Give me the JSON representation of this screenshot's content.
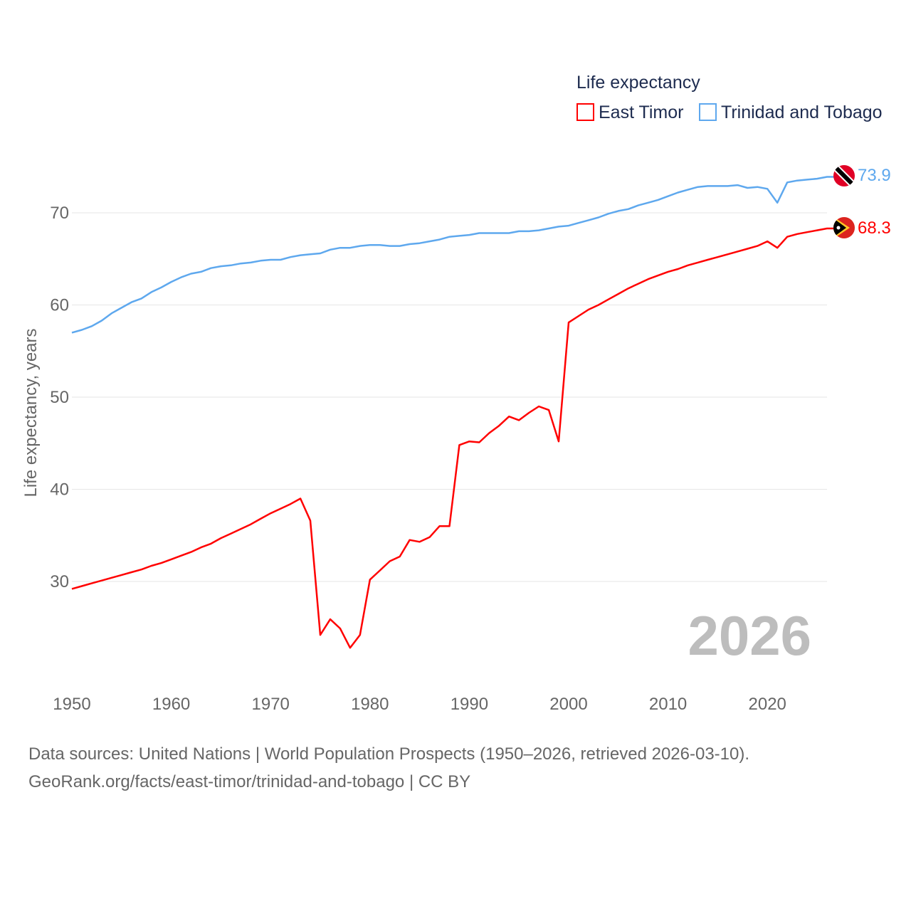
{
  "chart_data": {
    "type": "line",
    "title": "Life expectancy",
    "ylabel": "Life expectancy, years",
    "xlabel": "",
    "xlim": [
      1950,
      2026
    ],
    "ylim": [
      20,
      78
    ],
    "x_ticks": [
      1950,
      1960,
      1970,
      1980,
      1990,
      2000,
      2010,
      2020
    ],
    "y_ticks": [
      30,
      40,
      50,
      60,
      70
    ],
    "grid": true,
    "legend_position": "top-right",
    "year_label": "2026",
    "x": [
      1950,
      1951,
      1952,
      1953,
      1954,
      1955,
      1956,
      1957,
      1958,
      1959,
      1960,
      1961,
      1962,
      1963,
      1964,
      1965,
      1966,
      1967,
      1968,
      1969,
      1970,
      1971,
      1972,
      1973,
      1974,
      1975,
      1976,
      1977,
      1978,
      1979,
      1980,
      1981,
      1982,
      1983,
      1984,
      1985,
      1986,
      1987,
      1988,
      1989,
      1990,
      1991,
      1992,
      1993,
      1994,
      1995,
      1996,
      1997,
      1998,
      1999,
      2000,
      2001,
      2002,
      2003,
      2004,
      2005,
      2006,
      2007,
      2008,
      2009,
      2010,
      2011,
      2012,
      2013,
      2014,
      2015,
      2016,
      2017,
      2018,
      2019,
      2020,
      2021,
      2022,
      2023,
      2024,
      2025,
      2026
    ],
    "series": [
      {
        "name": "East Timor",
        "color": "#ff0000",
        "end_label": "68.3",
        "values": [
          29.2,
          29.5,
          29.8,
          30.1,
          30.4,
          30.7,
          31.0,
          31.3,
          31.7,
          32.0,
          32.4,
          32.8,
          33.2,
          33.7,
          34.1,
          34.7,
          35.2,
          35.7,
          36.2,
          36.8,
          37.4,
          37.9,
          38.4,
          39.0,
          36.6,
          24.2,
          25.9,
          24.9,
          22.8,
          24.2,
          30.2,
          31.2,
          32.2,
          32.7,
          34.5,
          34.3,
          34.8,
          36.0,
          36.0,
          44.8,
          45.2,
          45.1,
          46.1,
          46.9,
          47.9,
          47.5,
          48.3,
          49.0,
          48.6,
          45.2,
          58.1,
          58.8,
          59.5,
          60.0,
          60.6,
          61.2,
          61.8,
          62.3,
          62.8,
          63.2,
          63.6,
          63.9,
          64.3,
          64.6,
          64.9,
          65.2,
          65.5,
          65.8,
          66.1,
          66.4,
          66.9,
          66.2,
          67.4,
          67.7,
          67.9,
          68.1,
          68.3
        ]
      },
      {
        "name": "Trinidad and Tobago",
        "color": "#5ea8ee",
        "end_label": "73.9",
        "values": [
          57.0,
          57.3,
          57.7,
          58.3,
          59.1,
          59.7,
          60.3,
          60.7,
          61.4,
          61.9,
          62.5,
          63.0,
          63.4,
          63.6,
          64.0,
          64.2,
          64.3,
          64.5,
          64.6,
          64.8,
          64.9,
          64.9,
          65.2,
          65.4,
          65.5,
          65.6,
          66.0,
          66.2,
          66.2,
          66.4,
          66.5,
          66.5,
          66.4,
          66.4,
          66.6,
          66.7,
          66.9,
          67.1,
          67.4,
          67.5,
          67.6,
          67.8,
          67.8,
          67.8,
          67.8,
          68.0,
          68.0,
          68.1,
          68.3,
          68.5,
          68.6,
          68.9,
          69.2,
          69.5,
          69.9,
          70.2,
          70.4,
          70.8,
          71.1,
          71.4,
          71.8,
          72.2,
          72.5,
          72.8,
          72.9,
          72.9,
          72.9,
          73.0,
          72.7,
          72.8,
          72.6,
          71.1,
          73.3,
          73.5,
          73.6,
          73.7,
          73.9
        ]
      }
    ]
  },
  "sources": {
    "line1": "Data sources: United Nations | World Population Prospects (1950–2026, retrieved 2026-03-10).",
    "line2": "GeoRank.org/facts/east-timor/trinidad-and-tobago | CC BY"
  }
}
